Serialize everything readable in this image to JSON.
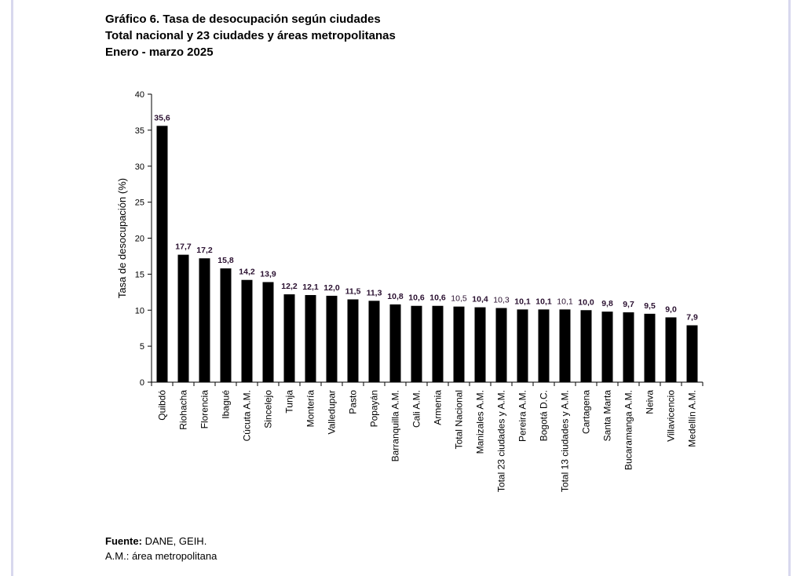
{
  "title": {
    "line1": "Gráfico 6. Tasa de desocupación según ciudades",
    "line2": "Total nacional y 23 ciudades y áreas metropolitanas",
    "line3": "Enero - marzo 2025"
  },
  "chart_data": {
    "type": "bar",
    "ylabel": "Tasa de desocupación (%)",
    "xlabel": "",
    "ylim": [
      0,
      40
    ],
    "yticks": [
      0,
      5,
      10,
      15,
      20,
      25,
      30,
      35,
      40
    ],
    "grid": false,
    "categories": [
      "Quibdó",
      "Riohacha",
      "Florencia",
      "Ibagué",
      "Cúcuta A.M.",
      "Sincelejo",
      "Tunja",
      "Montería",
      "Valledupar",
      "Pasto",
      "Popayán",
      "Barranquilla A.M.",
      "Cali A.M.",
      "Armenia",
      "Total Nacional",
      "Manizales A.M.",
      "Total 23 ciudades y A.M.",
      "Pereira A.M.",
      "Bogotá D.C.",
      "Total 13 ciudades y A.M.",
      "Cartagena",
      "Santa Marta",
      "Bucaramanga A.M.",
      "Neiva",
      "Villavicencio",
      "Medellín A.M."
    ],
    "values": [
      35.6,
      17.7,
      17.2,
      15.8,
      14.2,
      13.9,
      12.2,
      12.1,
      12.0,
      11.5,
      11.3,
      10.8,
      10.6,
      10.6,
      10.5,
      10.4,
      10.3,
      10.1,
      10.1,
      10.1,
      10.0,
      9.8,
      9.7,
      9.5,
      9.0,
      7.9
    ],
    "data_labels": [
      "35,6",
      "17,7",
      "17,2",
      "15,8",
      "14,2",
      "13,9",
      "12,2",
      "12,1",
      "12,0",
      "11,5",
      "11,3",
      "10,8",
      "10,6",
      "10,6",
      "10,5",
      "10,4",
      "10,3",
      "10,1",
      "10,1",
      "10,1",
      "10,0",
      "9,8",
      "9,7",
      "9,5",
      "9,0",
      "7,9"
    ],
    "bold_labels": [
      true,
      true,
      true,
      true,
      true,
      true,
      true,
      true,
      true,
      true,
      true,
      true,
      true,
      true,
      false,
      true,
      false,
      true,
      true,
      false,
      true,
      true,
      true,
      true,
      true,
      true
    ],
    "bar_color": "#000000",
    "label_color": "#2a1030"
  },
  "footer": {
    "source_label": "Fuente:",
    "source_text": " DANE, GEIH.",
    "note": "A.M.: área metropolitana"
  }
}
